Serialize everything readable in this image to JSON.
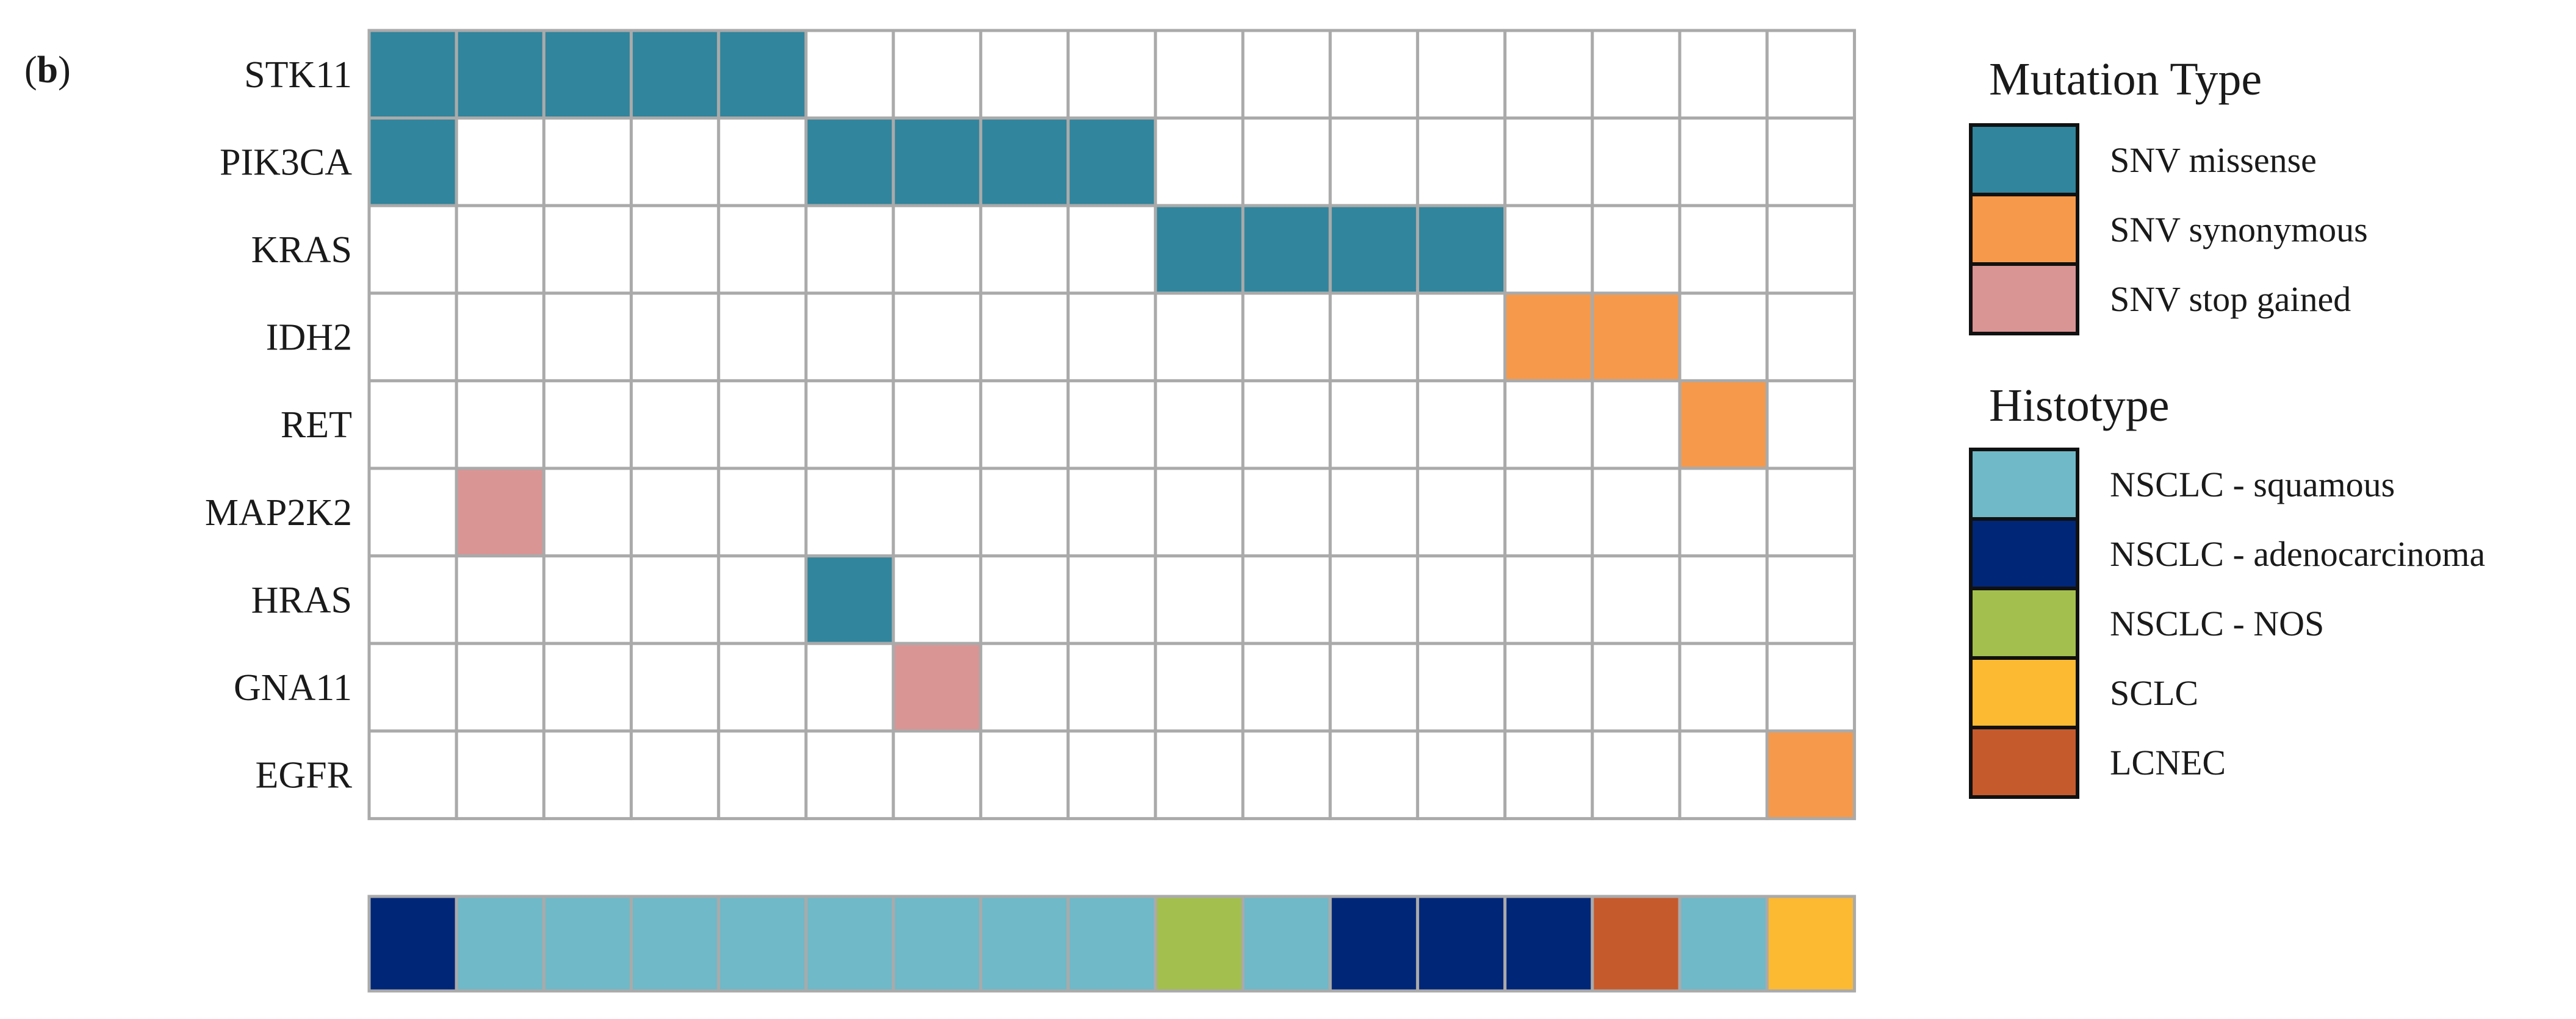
{
  "panel_label": {
    "open": "(",
    "letter": "b",
    "close": ")"
  },
  "chart_data": {
    "type": "heatmap",
    "title": "",
    "genes": [
      "STK11",
      "PIK3CA",
      "KRAS",
      "IDH2",
      "RET",
      "MAP2K2",
      "HRAS",
      "GNA11",
      "EGFR"
    ],
    "samples": 17,
    "mutations": [
      {
        "gene": "STK11",
        "cells": [
          "missense",
          "missense",
          "missense",
          "missense",
          "missense",
          null,
          null,
          null,
          null,
          null,
          null,
          null,
          null,
          null,
          null,
          null,
          null
        ]
      },
      {
        "gene": "PIK3CA",
        "cells": [
          "missense",
          null,
          null,
          null,
          null,
          "missense",
          "missense",
          "missense",
          "missense",
          null,
          null,
          null,
          null,
          null,
          null,
          null,
          null
        ]
      },
      {
        "gene": "KRAS",
        "cells": [
          null,
          null,
          null,
          null,
          null,
          null,
          null,
          null,
          null,
          "missense",
          "missense",
          "missense",
          "missense",
          null,
          null,
          null,
          null
        ]
      },
      {
        "gene": "IDH2",
        "cells": [
          null,
          null,
          null,
          null,
          null,
          null,
          null,
          null,
          null,
          null,
          null,
          null,
          null,
          "synonymous",
          "synonymous",
          null,
          null
        ]
      },
      {
        "gene": "RET",
        "cells": [
          null,
          null,
          null,
          null,
          null,
          null,
          null,
          null,
          null,
          null,
          null,
          null,
          null,
          null,
          null,
          "synonymous",
          null
        ]
      },
      {
        "gene": "MAP2K2",
        "cells": [
          null,
          "stop",
          null,
          null,
          null,
          null,
          null,
          null,
          null,
          null,
          null,
          null,
          null,
          null,
          null,
          null,
          null
        ]
      },
      {
        "gene": "HRAS",
        "cells": [
          null,
          null,
          null,
          null,
          null,
          "missense",
          null,
          null,
          null,
          null,
          null,
          null,
          null,
          null,
          null,
          null,
          null
        ]
      },
      {
        "gene": "GNA11",
        "cells": [
          null,
          null,
          null,
          null,
          null,
          null,
          "stop",
          null,
          null,
          null,
          null,
          null,
          null,
          null,
          null,
          null,
          null
        ]
      },
      {
        "gene": "EGFR",
        "cells": [
          null,
          null,
          null,
          null,
          null,
          null,
          null,
          null,
          null,
          null,
          null,
          null,
          null,
          null,
          null,
          null,
          "synonymous"
        ]
      }
    ],
    "histotype_row": [
      "adeno",
      "squamous",
      "squamous",
      "squamous",
      "squamous",
      "squamous",
      "squamous",
      "squamous",
      "squamous",
      "nos",
      "squamous",
      "adeno",
      "adeno",
      "adeno",
      "lcnec",
      "squamous",
      "sclc"
    ],
    "legend": {
      "mutation_title": "Mutation Type",
      "mutation_items": [
        {
          "key": "missense",
          "label": "SNV missense",
          "color": "#31859c"
        },
        {
          "key": "synonymous",
          "label": "SNV synonymous",
          "color": "#f7994a"
        },
        {
          "key": "stop",
          "label": "SNV stop gained",
          "color": "#d99594"
        }
      ],
      "histotype_title": "Histotype",
      "histotype_items": [
        {
          "key": "squamous",
          "label": "NSCLC - squamous",
          "color": "#6fb9c8"
        },
        {
          "key": "adeno",
          "label": "NSCLC - adenocarcinoma",
          "color": "#002677"
        },
        {
          "key": "nos",
          "label": "NSCLC - NOS",
          "color": "#a3bf4d"
        },
        {
          "key": "sclc",
          "label": "SCLC",
          "color": "#fcba33"
        },
        {
          "key": "lcnec",
          "label": "LCNEC",
          "color": "#c55a2d"
        }
      ]
    },
    "grid_color": "#aaaaaa"
  }
}
